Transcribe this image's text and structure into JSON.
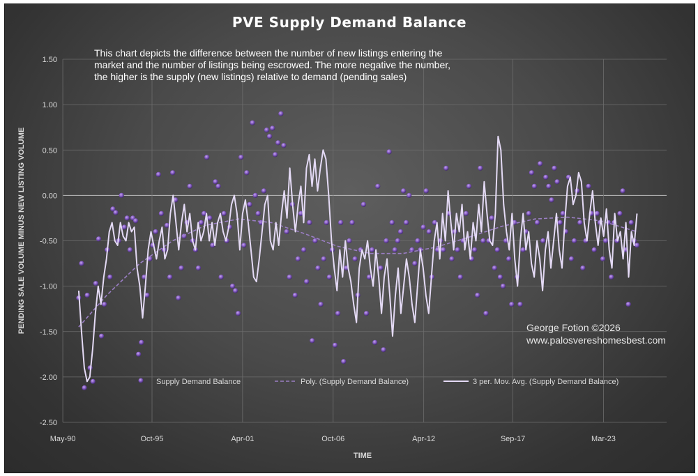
{
  "chart_data": {
    "type": "scatter",
    "title": "PVE Supply Demand Balance",
    "xlabel": "TIME",
    "ylabel": "PENDING SALE VOLUME MINUS NEW LISTING VOLUME",
    "ylim": [
      -2.5,
      1.5
    ],
    "yticks": [
      "1.50",
      "1.00",
      "0.50",
      "0.00",
      "-0.50",
      "-1.00",
      "-1.50",
      "-2.00",
      "-2.50"
    ],
    "xticks": [
      "May-90",
      "Oct-95",
      "Apr-01",
      "Oct-06",
      "Apr-12",
      "Sep-17",
      "Mar-23"
    ],
    "grid": true,
    "legend_position": "bottom",
    "annotation": [
      "This chart depicts the difference between the number of new listings entering the",
      "market and the number of listings being escrowed.  The more negative the number,",
      "the higher is the supply (new listings) relative to demand (pending sales)"
    ],
    "credit": [
      "George Fotion ©2026",
      "www.palosvereshomesbest.com"
    ],
    "series": [
      {
        "name": "Supply Demand Balance",
        "kind": "scatter",
        "color": "#8a62c8"
      },
      {
        "name": "Poly. (Supply Demand Balance)",
        "kind": "trendline",
        "color": "#9a7ec4"
      },
      {
        "name": "3 per. Mov. Avg. (Supply Demand Balance)",
        "kind": "moving-average",
        "color": "#e4daf5"
      }
    ],
    "moving_average": {
      "start_year": 1991.3,
      "end_year": 2025.2,
      "points": [
        -1.05,
        -1.5,
        -1.9,
        -2.05,
        -2.0,
        -1.7,
        -1.3,
        -1.0,
        -1.2,
        -0.9,
        -0.7,
        -0.4,
        -0.3,
        -0.5,
        -0.55,
        -0.3,
        -0.45,
        -0.5,
        -0.3,
        -0.4,
        -0.35,
        -0.8,
        -1.0,
        -1.35,
        -1.0,
        -0.6,
        -0.4,
        -0.55,
        -0.7,
        -0.5,
        -0.35,
        -0.7,
        -0.6,
        -0.2,
        0.0,
        -0.3,
        -0.6,
        -0.3,
        -0.1,
        -0.4,
        -0.2,
        -0.5,
        -0.6,
        -0.3,
        -0.5,
        -0.4,
        -0.2,
        -0.5,
        -0.3,
        -0.55,
        -0.3,
        -0.2,
        -0.4,
        -0.5,
        -0.35,
        -0.1,
        0.0,
        -0.2,
        -0.6,
        -0.2,
        -0.05,
        -0.3,
        -0.6,
        -0.9,
        -0.95,
        -0.7,
        -0.4,
        -0.1,
        0.0,
        -0.5,
        -0.6,
        -0.3,
        -0.55,
        -0.2,
        0.05,
        -0.25,
        0.3,
        -0.1,
        -0.4,
        -0.1,
        0.1,
        -0.3,
        0.3,
        0.45,
        0.1,
        0.4,
        0.05,
        0.3,
        0.5,
        0.4,
        0.0,
        -0.5,
        -0.8,
        -1.05,
        -0.6,
        -0.9,
        -0.5,
        -0.8,
        -0.95,
        -1.2,
        -1.4,
        -0.8,
        -0.6,
        -0.7,
        -0.5,
        -0.8,
        -1.0,
        -0.6,
        -0.9,
        -1.3,
        -0.9,
        -0.7,
        -1.1,
        -1.55,
        -1.1,
        -0.8,
        -1.3,
        -1.0,
        -0.7,
        -0.9,
        -1.2,
        -1.4,
        -1.0,
        -0.6,
        -0.8,
        -1.1,
        -1.3,
        -0.9,
        -0.5,
        -0.3,
        -0.7,
        -0.2,
        -0.5,
        0.05,
        -0.3,
        -0.6,
        -0.2,
        -0.4,
        -0.1,
        -0.6,
        -0.4,
        -0.7,
        -0.3,
        -0.5,
        -0.1,
        -0.4,
        0.15,
        -0.2,
        -0.5,
        -0.55,
        -0.2,
        0.65,
        0.5,
        -0.1,
        -0.4,
        -0.6,
        -0.2,
        -0.7,
        -1.0,
        -0.5,
        -0.2,
        -0.6,
        -0.4,
        -0.75,
        -0.9,
        -0.5,
        -0.7,
        -1.05,
        -0.6,
        -0.4,
        -0.8,
        -0.5,
        -0.2,
        -0.6,
        -0.8,
        -0.3,
        0.1,
        0.2,
        -0.1,
        0.0,
        0.25,
        0.15,
        -0.3,
        -0.5,
        -0.2,
        0.05,
        -0.3,
        -0.55,
        -0.25,
        -0.45,
        -0.15,
        -0.6,
        -0.8,
        -0.2,
        -0.5,
        -0.4,
        -0.7,
        -0.3,
        -0.9,
        -0.4,
        -0.55,
        -0.2
      ]
    },
    "polynomial_trend": {
      "x_years": [
        1991.3,
        1993,
        1995,
        1997,
        1999,
        2001,
        2003,
        2005,
        2007,
        2009,
        2011,
        2013,
        2015,
        2017,
        2019,
        2021,
        2023,
        2025.2
      ],
      "y": [
        -1.45,
        -1.1,
        -0.75,
        -0.5,
        -0.33,
        -0.26,
        -0.3,
        -0.42,
        -0.56,
        -0.64,
        -0.64,
        -0.57,
        -0.46,
        -0.34,
        -0.26,
        -0.24,
        -0.28,
        -0.4
      ]
    },
    "scatter_points": {
      "start_year": 1991.3,
      "end_year": 2025.2,
      "values": [
        -1.13,
        -0.75,
        -2.12,
        -1.1,
        -1.9,
        -2.05,
        -0.97,
        -0.48,
        -1.55,
        -1.2,
        -0.6,
        -0.9,
        -0.15,
        -0.19,
        -0.5,
        0.0,
        -0.35,
        -0.25,
        -0.6,
        -0.25,
        -0.28,
        -1.75,
        -1.62,
        -0.9,
        -1.1,
        -0.7,
        -0.55,
        -0.4,
        0.23,
        -0.2,
        -0.6,
        -0.33,
        -0.9,
        0.25,
        -0.05,
        -1.13,
        -0.8,
        -0.45,
        -0.3,
        0.1,
        -0.5,
        -0.6,
        -0.8,
        -0.3,
        -0.2,
        0.42,
        -0.25,
        -0.55,
        0.15,
        0.1,
        -0.9,
        -0.2,
        -0.5,
        -0.35,
        -1.0,
        -1.05,
        -1.3,
        0.42,
        -0.55,
        0.25,
        -0.1,
        0.8,
        0.0,
        -0.2,
        -0.3,
        0.05,
        0.72,
        0.65,
        0.74,
        0.45,
        0.58,
        0.9,
        0.55,
        -0.4,
        -0.9,
        -0.1,
        -1.1,
        -0.7,
        -0.2,
        -0.6,
        -0.95,
        -0.3,
        -1.6,
        -0.5,
        -0.8,
        -1.2,
        -0.7,
        -0.3,
        -0.9,
        -0.6,
        -1.65,
        -1.3,
        -0.3,
        -1.83,
        -0.8,
        -0.5,
        -0.3,
        -0.7,
        -1.1,
        -0.6,
        -0.1,
        -1.3,
        -0.9,
        -0.6,
        -1.62,
        0.1,
        -0.8,
        -1.7,
        -0.5,
        0.48,
        -0.3,
        -0.6,
        -0.5,
        -0.4,
        0.05,
        -0.3,
        0.0,
        -0.6,
        -0.75,
        -0.5,
        -0.6,
        -0.35,
        0.05,
        -0.4,
        -0.9,
        -0.3,
        -0.6,
        -0.5,
        -0.6,
        0.3,
        -0.2,
        -0.7,
        -0.4,
        -0.6,
        -0.9,
        -0.5,
        -0.2,
        0.1,
        -0.7,
        -0.6,
        -1.1,
        0.3,
        -0.5,
        -1.3,
        -0.5,
        -0.25,
        -0.8,
        -0.6,
        -0.9,
        -1.0,
        -0.5,
        -0.7,
        -1.2,
        -0.3,
        -0.9,
        -1.2,
        -0.6,
        -0.4,
        -0.2,
        0.25,
        0.1,
        -0.3,
        0.35,
        -0.5,
        0.2,
        0.1,
        -0.05,
        0.3,
        0.15,
        -0.3,
        -0.2,
        -0.4,
        0.2,
        -0.7,
        -0.5,
        0.05,
        -0.3,
        -0.8,
        -0.5,
        0.1,
        -0.2,
        -0.6,
        -0.2,
        -0.3,
        -0.7,
        -0.5,
        -0.3,
        -0.9,
        -0.3,
        -0.5,
        -0.2,
        0.05,
        -0.6,
        -1.2,
        -0.3,
        -0.5,
        -0.55
      ]
    }
  }
}
